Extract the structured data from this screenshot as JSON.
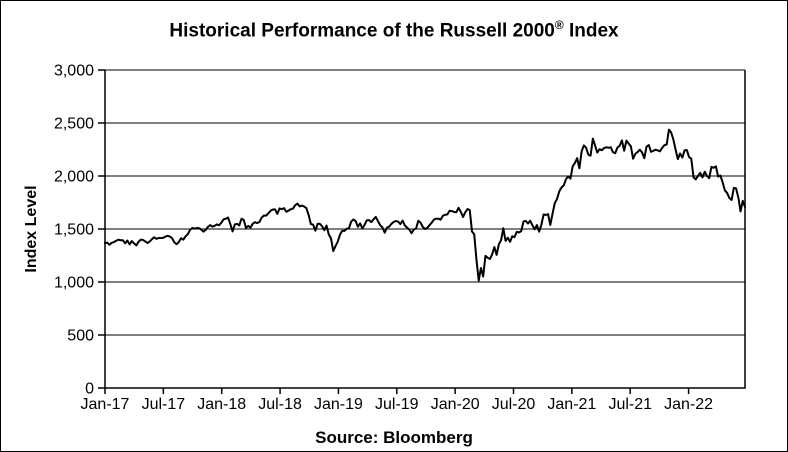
{
  "title": {
    "part1": "Historical Performance of the Russell 2000",
    "registered": "®",
    "part2": " Index"
  },
  "source": "Source: Bloomberg",
  "chart_data": {
    "type": "line",
    "title": "Historical Performance of the Russell 2000® Index",
    "xlabel": "",
    "ylabel": "Index Level",
    "source": "Source: Bloomberg",
    "legend": "none",
    "grid": "horizontal",
    "line_color": "#000000",
    "axis_color": "#000000",
    "background_color": "#ffffff",
    "ylim": [
      0,
      3000
    ],
    "y_ticks": [
      0,
      500,
      1000,
      1500,
      2000,
      2500,
      3000
    ],
    "y_tick_labels": [
      "0",
      "500",
      "1,000",
      "1,500",
      "2,000",
      "2,500",
      "3,000"
    ],
    "x_tick_labels": [
      "Jan-17",
      "Jul-17",
      "Jan-18",
      "Jul-18",
      "Jan-19",
      "Jul-19",
      "Jan-20",
      "Jul-20",
      "Jan-21",
      "Jul-21",
      "Jan-22"
    ],
    "x_tick_months": [
      0,
      6,
      12,
      18,
      24,
      30,
      36,
      42,
      48,
      54,
      60
    ],
    "x_total_months": 65.8,
    "series": [
      {
        "name": "Russell 2000 Index",
        "frequency": "weekly",
        "start": "Jan-2017",
        "end": "Jun-2022",
        "values": [
          1367,
          1372,
          1351,
          1370,
          1377,
          1389,
          1399,
          1394,
          1394,
          1365,
          1391,
          1355,
          1386,
          1364,
          1345,
          1380,
          1400,
          1397,
          1383,
          1368,
          1382,
          1405,
          1422,
          1407,
          1415,
          1415,
          1416,
          1429,
          1435,
          1429,
          1412,
          1374,
          1357,
          1377,
          1413,
          1399,
          1431,
          1451,
          1491,
          1510,
          1503,
          1509,
          1508,
          1494,
          1475,
          1492,
          1519,
          1537,
          1522,
          1530,
          1543,
          1536,
          1560,
          1591,
          1597,
          1608,
          1547,
          1477,
          1543,
          1549,
          1533,
          1597,
          1586,
          1510,
          1529,
          1513,
          1549,
          1564,
          1556,
          1566,
          1607,
          1627,
          1626,
          1648,
          1672,
          1684,
          1685,
          1643,
          1694,
          1687,
          1697,
          1663,
          1673,
          1686,
          1693,
          1725,
          1740,
          1713,
          1721,
          1712,
          1696,
          1632,
          1546,
          1542,
          1484,
          1548,
          1549,
          1527,
          1488,
          1533,
          1448,
          1411,
          1292,
          1338,
          1380,
          1447,
          1482,
          1482,
          1502,
          1506,
          1569,
          1590,
          1575,
          1521,
          1553,
          1505,
          1539,
          1582,
          1584,
          1565,
          1591,
          1614,
          1573,
          1535,
          1514,
          1465,
          1514,
          1522,
          1549,
          1567,
          1575,
          1570,
          1547,
          1579,
          1533,
          1513,
          1494,
          1460,
          1495,
          1505,
          1578,
          1560,
          1520,
          1500,
          1511,
          1536,
          1559,
          1589,
          1598,
          1597,
          1588,
          1625,
          1634,
          1638,
          1672,
          1669,
          1661,
          1658,
          1700,
          1662,
          1614,
          1657,
          1688,
          1679,
          1476,
          1449,
          1210,
          1014,
          1132,
          1052,
          1247,
          1229,
          1217,
          1260,
          1330,
          1256,
          1356,
          1394,
          1507,
          1388,
          1418,
          1379,
          1431,
          1423,
          1473,
          1467,
          1480,
          1570,
          1577,
          1552,
          1578,
          1535,
          1497,
          1537,
          1475,
          1539,
          1637,
          1633,
          1640,
          1538,
          1644,
          1744,
          1785,
          1855,
          1892,
          1911,
          1970,
          1996,
          1975,
          2091,
          2123,
          2168,
          2073,
          2233,
          2289,
          2266,
          2201,
          2192,
          2353,
          2287,
          2221,
          2253,
          2243,
          2263,
          2271,
          2266,
          2271,
          2224,
          2215,
          2269,
          2286,
          2336,
          2238,
          2334,
          2306,
          2280,
          2163,
          2210,
          2226,
          2248,
          2223,
          2168,
          2277,
          2292,
          2228,
          2237,
          2248,
          2241,
          2233,
          2266,
          2291,
          2297,
          2437,
          2411,
          2343,
          2246,
          2159,
          2212,
          2174,
          2242,
          2245,
          2179,
          2163,
          1988,
          1968,
          2002,
          2030,
          1987,
          2040,
          2000,
          1980,
          2086,
          2078,
          2091,
          1994,
          2004,
          1941,
          1864,
          1840,
          1793,
          1774,
          1888,
          1883,
          1800,
          1666,
          1766,
          1708
        ]
      }
    ]
  }
}
